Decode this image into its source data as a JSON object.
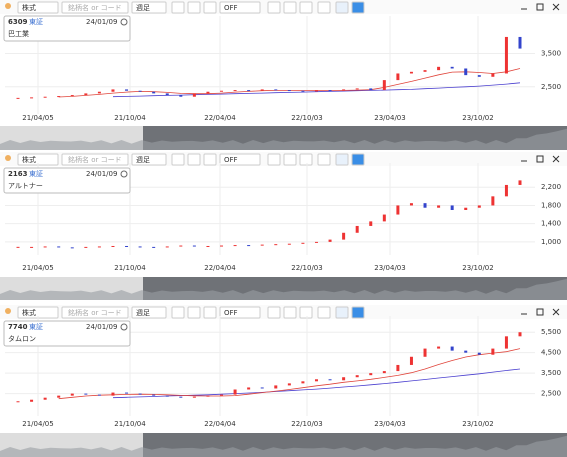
{
  "panels": [
    {
      "toolbar": {
        "market": "株式",
        "search": "銘柄名 or コード",
        "period": "週足",
        "mode": "OFF"
      },
      "info": {
        "code": "6309",
        "exchange": "東証",
        "date": "24/01/09",
        "name": "巴工業"
      },
      "x_labels": [
        "21/04/05",
        "21/10/04",
        "22/04/04",
        "22/10/03",
        "23/04/03",
        "23/10/02"
      ],
      "ylim": [
        1800,
        4450
      ],
      "yticks": [
        {
          "value": 2500,
          "label": "2,500"
        },
        {
          "value": 3500,
          "label": "3,500"
        }
      ],
      "closes": [
        2150,
        2180,
        2200,
        2220,
        2250,
        2300,
        2350,
        2420,
        2380,
        2350,
        2300,
        2250,
        2200,
        2300,
        2350,
        2380,
        2400,
        2380,
        2420,
        2400,
        2380,
        2360,
        2400,
        2380,
        2420,
        2450,
        2400,
        2700,
        2900,
        2950,
        3000,
        3100,
        3050,
        2850,
        2800,
        2900,
        4000,
        3650
      ],
      "ma_short": [
        null,
        null,
        null,
        2190,
        2210,
        2240,
        2270,
        2310,
        2340,
        2360,
        2350,
        2330,
        2300,
        2290,
        2290,
        2310,
        2340,
        2360,
        2380,
        2390,
        2390,
        2385,
        2385,
        2385,
        2390,
        2400,
        2410,
        2480,
        2570,
        2660,
        2760,
        2860,
        2940,
        2950,
        2930,
        2900,
        2950,
        3050
      ],
      "ma_long": [
        null,
        null,
        null,
        null,
        null,
        null,
        null,
        2200,
        2210,
        2220,
        2230,
        2240,
        2250,
        2260,
        2270,
        2280,
        2290,
        2300,
        2310,
        2320,
        2330,
        2340,
        2350,
        2360,
        2370,
        2380,
        2390,
        2400,
        2410,
        2420,
        2440,
        2460,
        2480,
        2500,
        2520,
        2550,
        2580,
        2620
      ]
    },
    {
      "toolbar": {
        "market": "株式",
        "search": "銘柄名 or コード",
        "period": "週足",
        "mode": "OFF"
      },
      "info": {
        "code": "2163",
        "exchange": "東証",
        "date": "24/01/09",
        "name": "アルトナー"
      },
      "x_labels": [
        "21/04/05",
        "21/10/04",
        "22/04/04",
        "22/10/03",
        "23/04/03",
        "23/10/02"
      ],
      "ylim": [
        800,
        2600
      ],
      "yticks": [
        {
          "value": 1000,
          "label": "1,000"
        },
        {
          "value": 1400,
          "label": "1,400"
        },
        {
          "value": 1800,
          "label": "1,800"
        },
        {
          "value": 2200,
          "label": "2,200"
        }
      ],
      "closes": [
        880,
        890,
        900,
        880,
        870,
        890,
        900,
        910,
        900,
        890,
        880,
        900,
        920,
        900,
        910,
        920,
        930,
        920,
        940,
        950,
        960,
        980,
        1000,
        1050,
        1200,
        1350,
        1450,
        1600,
        1800,
        1850,
        1750,
        1800,
        1700,
        1750,
        1800,
        2000,
        2250,
        2350
      ]
    },
    {
      "toolbar": {
        "market": "株式",
        "search": "銘柄名 or コード",
        "period": "週足",
        "mode": "OFF"
      },
      "info": {
        "code": "7740",
        "exchange": "東証",
        "date": "24/01/09",
        "name": "タムロン"
      },
      "x_labels": [
        "21/04/05",
        "21/10/04",
        "22/04/04",
        "22/10/03",
        "23/04/03",
        "23/10/02"
      ],
      "ylim": [
        1600,
        6000
      ],
      "yticks": [
        {
          "value": 2500,
          "label": "2,500"
        },
        {
          "value": 3500,
          "label": "3,500"
        },
        {
          "value": 4500,
          "label": "4,500"
        },
        {
          "value": 5500,
          "label": "5,500"
        }
      ],
      "closes": [
        2100,
        2200,
        2300,
        2400,
        2500,
        2450,
        2400,
        2550,
        2500,
        2450,
        2400,
        2350,
        2300,
        2350,
        2400,
        2450,
        2700,
        2800,
        2750,
        2900,
        3000,
        3100,
        3200,
        3150,
        3300,
        3400,
        3500,
        3600,
        3900,
        4300,
        4700,
        4800,
        4600,
        4500,
        4400,
        4700,
        5300,
        5500
      ],
      "ma_short": [
        null,
        null,
        null,
        2250,
        2320,
        2380,
        2420,
        2440,
        2460,
        2470,
        2460,
        2440,
        2410,
        2390,
        2380,
        2380,
        2400,
        2470,
        2550,
        2620,
        2700,
        2790,
        2880,
        2960,
        3050,
        3120,
        3200,
        3290,
        3390,
        3520,
        3700,
        3920,
        4120,
        4290,
        4400,
        4480,
        4550,
        4700
      ],
      "ma_long": [
        null,
        null,
        null,
        null,
        null,
        null,
        null,
        2300,
        2320,
        2340,
        2360,
        2380,
        2400,
        2420,
        2440,
        2470,
        2500,
        2530,
        2560,
        2600,
        2640,
        2680,
        2720,
        2770,
        2820,
        2870,
        2930,
        2990,
        3050,
        3120,
        3190,
        3260,
        3330,
        3400,
        3470,
        3550,
        3630,
        3700
      ]
    }
  ]
}
